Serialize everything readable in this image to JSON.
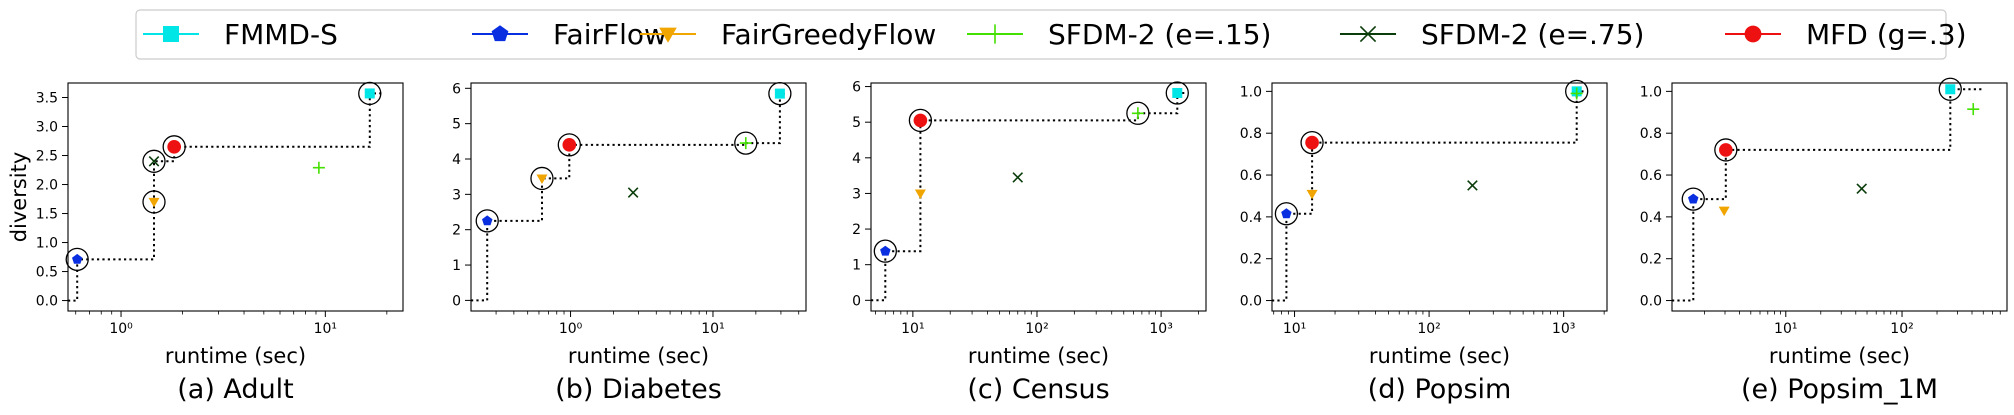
{
  "legend": {
    "placement": "top-center",
    "items": [
      {
        "label": "FMMD-S",
        "color": "#00e5e5",
        "marker": "square"
      },
      {
        "label": "FairFlow",
        "color": "#0a2fe0",
        "marker": "pentagon"
      },
      {
        "label": "FairGreedyFlow",
        "color": "#f0a500",
        "marker": "triangle-down"
      },
      {
        "label": "SFDM-2 (e=.15)",
        "color": "#44e000",
        "marker": "plus"
      },
      {
        "label": "SFDM-2 (e=.75)",
        "color": "#0b3d0b",
        "marker": "x"
      },
      {
        "label": "MFD (g=.3)",
        "color": "#ee1111",
        "marker": "circle"
      }
    ]
  },
  "chart_data": [
    {
      "type": "scatter",
      "caption": "(a) Adult",
      "xlabel": "runtime (sec)",
      "ylabel": "diversity",
      "xscale": "log",
      "xlim": [
        0.55,
        24
      ],
      "ylim": [
        -0.18,
        3.75
      ],
      "xticks": [
        {
          "v": 1,
          "label": "10^0"
        },
        {
          "v": 10,
          "label": "10^1"
        }
      ],
      "yticks": [
        0,
        0.5,
        1.0,
        1.5,
        2.0,
        2.5,
        3.0,
        3.5
      ],
      "ytick_labels": [
        "0.0",
        "0.5",
        "1.0",
        "1.5",
        "2.0",
        "2.5",
        "3.0",
        "3.5"
      ],
      "points": [
        {
          "series": "FMMD-S",
          "x": 16.5,
          "y": 3.57,
          "pareto": true
        },
        {
          "series": "FairFlow",
          "x": 0.61,
          "y": 0.71,
          "pareto": true
        },
        {
          "series": "FairGreedyFlow",
          "x": 1.45,
          "y": 1.7,
          "pareto": true
        },
        {
          "series": "SFDM-2 (e=.15)",
          "x": 9.3,
          "y": 2.29,
          "pareto": false
        },
        {
          "series": "SFDM-2 (e=.75)",
          "x": 1.45,
          "y": 2.4,
          "pareto": true
        },
        {
          "series": "MFD (g=.3)",
          "x": 1.82,
          "y": 2.65,
          "pareto": true
        }
      ],
      "frontier": [
        [
          0.55,
          0
        ],
        [
          0.61,
          0
        ],
        [
          0.61,
          0.71
        ],
        [
          1.45,
          0.71
        ],
        [
          1.45,
          1.7
        ],
        [
          1.45,
          2.4
        ],
        [
          1.82,
          2.4
        ],
        [
          1.82,
          2.65
        ],
        [
          16.5,
          2.65
        ],
        [
          16.5,
          3.57
        ],
        [
          19.5,
          3.57
        ]
      ]
    },
    {
      "type": "scatter",
      "caption": "(b) Diabetes",
      "xlabel": "runtime (sec)",
      "ylabel": "",
      "xscale": "log",
      "xlim": [
        0.2,
        45
      ],
      "ylim": [
        -0.3,
        6.15
      ],
      "xticks": [
        {
          "v": 1,
          "label": "10^0"
        },
        {
          "v": 10,
          "label": "10^1"
        }
      ],
      "yticks": [
        0,
        1,
        2,
        3,
        4,
        5,
        6
      ],
      "ytick_labels": [
        "0",
        "1",
        "2",
        "3",
        "4",
        "5",
        "6"
      ],
      "points": [
        {
          "series": "FMMD-S",
          "x": 29.5,
          "y": 5.85,
          "pareto": true
        },
        {
          "series": "FairFlow",
          "x": 0.26,
          "y": 2.25,
          "pareto": true
        },
        {
          "series": "FairGreedyFlow",
          "x": 0.63,
          "y": 3.45,
          "pareto": true
        },
        {
          "series": "SFDM-2 (e=.15)",
          "x": 17.0,
          "y": 4.45,
          "pareto": true
        },
        {
          "series": "SFDM-2 (e=.75)",
          "x": 2.75,
          "y": 3.05,
          "pareto": false
        },
        {
          "series": "MFD (g=.3)",
          "x": 0.98,
          "y": 4.4,
          "pareto": true
        }
      ],
      "frontier": [
        [
          0.2,
          0
        ],
        [
          0.26,
          0
        ],
        [
          0.26,
          2.25
        ],
        [
          0.63,
          2.25
        ],
        [
          0.63,
          3.45
        ],
        [
          0.98,
          3.45
        ],
        [
          0.98,
          4.4
        ],
        [
          17.0,
          4.4
        ],
        [
          17.0,
          4.45
        ],
        [
          29.5,
          4.45
        ],
        [
          29.5,
          5.85
        ],
        [
          33,
          5.85
        ]
      ]
    },
    {
      "type": "scatter",
      "caption": "(c) Census",
      "xlabel": "runtime (sec)",
      "ylabel": "",
      "xscale": "log",
      "xlim": [
        4.6,
        2300
      ],
      "ylim": [
        -0.3,
        6.1
      ],
      "xticks": [
        {
          "v": 10,
          "label": "10^1"
        },
        {
          "v": 100,
          "label": "10^2"
        },
        {
          "v": 1000,
          "label": "10^3"
        }
      ],
      "yticks": [
        0,
        1,
        2,
        3,
        4,
        5,
        6
      ],
      "ytick_labels": [
        "0",
        "1",
        "2",
        "3",
        "4",
        "5",
        "6"
      ],
      "points": [
        {
          "series": "FMMD-S",
          "x": 1350,
          "y": 5.82,
          "pareto": true
        },
        {
          "series": "FairFlow",
          "x": 6.0,
          "y": 1.38,
          "pareto": true
        },
        {
          "series": "FairGreedyFlow",
          "x": 11.5,
          "y": 3.0,
          "pareto": false
        },
        {
          "series": "SFDM-2 (e=.15)",
          "x": 650,
          "y": 5.25,
          "pareto": true
        },
        {
          "series": "SFDM-2 (e=.75)",
          "x": 70,
          "y": 3.45,
          "pareto": false
        },
        {
          "series": "MFD (g=.3)",
          "x": 11.5,
          "y": 5.05,
          "pareto": true
        }
      ],
      "frontier": [
        [
          4.6,
          0
        ],
        [
          6.0,
          0
        ],
        [
          6.0,
          1.38
        ],
        [
          11.5,
          1.38
        ],
        [
          11.5,
          5.05
        ],
        [
          650,
          5.05
        ],
        [
          650,
          5.25
        ],
        [
          1350,
          5.25
        ],
        [
          1350,
          5.82
        ],
        [
          1600,
          5.82
        ]
      ]
    },
    {
      "type": "scatter",
      "caption": "(d) Popsim",
      "xlabel": "runtime (sec)",
      "ylabel": "",
      "xscale": "log",
      "xlim": [
        6.8,
        2100
      ],
      "ylim": [
        -0.05,
        1.04
      ],
      "xticks": [
        {
          "v": 10,
          "label": "10^1"
        },
        {
          "v": 100,
          "label": "10^2"
        },
        {
          "v": 1000,
          "label": "10^3"
        }
      ],
      "yticks": [
        0,
        0.2,
        0.4,
        0.6,
        0.8,
        1.0
      ],
      "ytick_labels": [
        "0.0",
        "0.2",
        "0.4",
        "0.6",
        "0.8",
        "1.0"
      ],
      "points": [
        {
          "series": "FMMD-S",
          "x": 1250,
          "y": 1.0,
          "pareto": true
        },
        {
          "series": "FairFlow",
          "x": 8.7,
          "y": 0.415,
          "pareto": true
        },
        {
          "series": "FairGreedyFlow",
          "x": 13.5,
          "y": 0.51,
          "pareto": false
        },
        {
          "series": "SFDM-2 (e=.15)",
          "x": 1250,
          "y": 0.99,
          "pareto": false
        },
        {
          "series": "SFDM-2 (e=.75)",
          "x": 210,
          "y": 0.55,
          "pareto": false
        },
        {
          "series": "MFD (g=.3)",
          "x": 13.5,
          "y": 0.755,
          "pareto": true
        }
      ],
      "frontier": [
        [
          6.8,
          0
        ],
        [
          8.7,
          0
        ],
        [
          8.7,
          0.415
        ],
        [
          13.5,
          0.415
        ],
        [
          13.5,
          0.755
        ],
        [
          1250,
          0.755
        ],
        [
          1250,
          1.0
        ],
        [
          1420,
          1.0
        ]
      ]
    },
    {
      "type": "scatter",
      "caption": "(e) Popsim_1M",
      "xlabel": "runtime (sec)",
      "ylabel": "",
      "xscale": "log",
      "xlim": [
        1.05,
        800
      ],
      "ylim": [
        -0.05,
        1.04
      ],
      "xticks": [
        {
          "v": 10,
          "label": "10^1"
        },
        {
          "v": 100,
          "label": "10^2"
        }
      ],
      "yticks": [
        0,
        0.2,
        0.4,
        0.6,
        0.8,
        1.0
      ],
      "ytick_labels": [
        "0.0",
        "0.2",
        "0.4",
        "0.6",
        "0.8",
        "1.0"
      ],
      "points": [
        {
          "series": "FMMD-S",
          "x": 260,
          "y": 1.01,
          "pareto": true
        },
        {
          "series": "FairFlow",
          "x": 1.6,
          "y": 0.485,
          "pareto": true
        },
        {
          "series": "FairGreedyFlow",
          "x": 2.95,
          "y": 0.43,
          "pareto": false
        },
        {
          "series": "SFDM-2 (e=.15)",
          "x": 410,
          "y": 0.915,
          "pareto": false
        },
        {
          "series": "SFDM-2 (e=.75)",
          "x": 45,
          "y": 0.535,
          "pareto": false
        },
        {
          "series": "MFD (g=.3)",
          "x": 3.05,
          "y": 0.72,
          "pareto": true
        }
      ],
      "frontier": [
        [
          1.05,
          0
        ],
        [
          1.6,
          0
        ],
        [
          1.6,
          0.485
        ],
        [
          3.05,
          0.485
        ],
        [
          3.05,
          0.72
        ],
        [
          260,
          0.72
        ],
        [
          260,
          1.01
        ],
        [
          500,
          1.01
        ]
      ]
    }
  ]
}
